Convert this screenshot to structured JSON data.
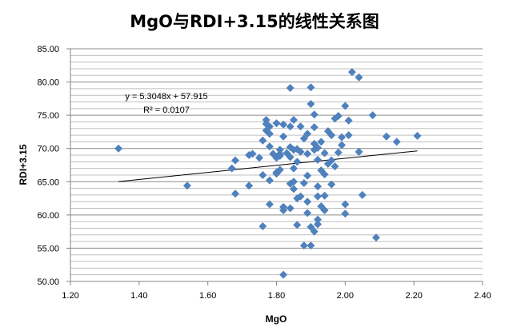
{
  "chart_data": {
    "type": "scatter",
    "title": "MgO与RDI+3.15的线性关系图",
    "xlabel": "MgO",
    "ylabel": "RDI+3.15",
    "xlim": [
      1.2,
      2.4
    ],
    "ylim": [
      50.0,
      85.0
    ],
    "x_ticks": [
      1.2,
      1.4,
      1.6,
      1.8,
      2.0,
      2.2,
      2.4
    ],
    "y_ticks": [
      50.0,
      55.0,
      60.0,
      65.0,
      70.0,
      75.0,
      80.0,
      85.0
    ],
    "x_tick_labels": [
      "1.20",
      "1.40",
      "1.60",
      "1.80",
      "2.00",
      "2.20",
      "2.40"
    ],
    "y_tick_labels": [
      "50.00",
      "55.00",
      "60.00",
      "65.00",
      "70.00",
      "75.00",
      "80.00",
      "85.00"
    ],
    "grid": {
      "horizontal": true,
      "minor_horizontal_step": 1,
      "vertical": false
    },
    "marker_color": "#4f81bd",
    "trendline": {
      "slope": 5.3048,
      "intercept": 57.915,
      "x_range": [
        1.34,
        2.21
      ],
      "color": "#000000",
      "equation_label": "y = 5.3048x  + 57.915",
      "r2_label": "R² = 0.0107"
    },
    "points": [
      [
        1.34,
        70.0
      ],
      [
        1.54,
        64.4
      ],
      [
        1.67,
        67.0
      ],
      [
        1.68,
        68.2
      ],
      [
        1.68,
        63.2
      ],
      [
        1.72,
        69.0
      ],
      [
        1.72,
        64.4
      ],
      [
        1.73,
        69.2
      ],
      [
        1.75,
        68.6
      ],
      [
        1.76,
        71.2
      ],
      [
        1.76,
        66.0
      ],
      [
        1.76,
        58.3
      ],
      [
        1.77,
        74.3
      ],
      [
        1.77,
        73.7
      ],
      [
        1.77,
        72.7
      ],
      [
        1.78,
        73.3
      ],
      [
        1.78,
        72.2
      ],
      [
        1.78,
        70.3
      ],
      [
        1.78,
        65.2
      ],
      [
        1.78,
        61.6
      ],
      [
        1.79,
        69.2
      ],
      [
        1.8,
        73.8
      ],
      [
        1.8,
        68.6
      ],
      [
        1.8,
        66.4
      ],
      [
        1.8,
        66.2
      ],
      [
        1.81,
        69.8
      ],
      [
        1.81,
        69.2
      ],
      [
        1.81,
        68.9
      ],
      [
        1.81,
        66.8
      ],
      [
        1.82,
        71.8
      ],
      [
        1.82,
        73.6
      ],
      [
        1.82,
        61.2
      ],
      [
        1.82,
        60.7
      ],
      [
        1.82,
        51.0
      ],
      [
        1.83,
        69.3
      ],
      [
        1.84,
        79.1
      ],
      [
        1.84,
        73.3
      ],
      [
        1.84,
        70.2
      ],
      [
        1.84,
        68.7
      ],
      [
        1.84,
        64.7
      ],
      [
        1.84,
        61.0
      ],
      [
        1.85,
        74.3
      ],
      [
        1.85,
        69.8
      ],
      [
        1.85,
        67.0
      ],
      [
        1.85,
        65.0
      ],
      [
        1.85,
        63.9
      ],
      [
        1.86,
        69.9
      ],
      [
        1.86,
        68.0
      ],
      [
        1.86,
        62.5
      ],
      [
        1.86,
        58.5
      ],
      [
        1.87,
        73.3
      ],
      [
        1.87,
        69.5
      ],
      [
        1.87,
        62.8
      ],
      [
        1.88,
        71.5
      ],
      [
        1.88,
        64.8
      ],
      [
        1.88,
        55.4
      ],
      [
        1.89,
        72.2
      ],
      [
        1.89,
        69.2
      ],
      [
        1.89,
        65.9
      ],
      [
        1.89,
        62.0
      ],
      [
        1.89,
        60.3
      ],
      [
        1.9,
        79.2
      ],
      [
        1.9,
        76.7
      ],
      [
        1.9,
        58.2
      ],
      [
        1.9,
        55.4
      ],
      [
        1.91,
        75.1
      ],
      [
        1.91,
        73.2
      ],
      [
        1.91,
        70.7
      ],
      [
        1.91,
        69.8
      ],
      [
        1.91,
        57.5
      ],
      [
        1.92,
        70.1
      ],
      [
        1.92,
        68.3
      ],
      [
        1.92,
        64.3
      ],
      [
        1.92,
        62.8
      ],
      [
        1.92,
        59.3
      ],
      [
        1.92,
        58.6
      ],
      [
        1.93,
        71.0
      ],
      [
        1.93,
        66.7
      ],
      [
        1.93,
        61.3
      ],
      [
        1.94,
        69.3
      ],
      [
        1.94,
        66.1
      ],
      [
        1.94,
        62.9
      ],
      [
        1.94,
        60.7
      ],
      [
        1.95,
        72.6
      ],
      [
        1.95,
        67.7
      ],
      [
        1.96,
        72.0
      ],
      [
        1.96,
        68.2
      ],
      [
        1.96,
        64.6
      ],
      [
        1.97,
        74.5
      ],
      [
        1.97,
        67.3
      ],
      [
        1.98,
        74.9
      ],
      [
        1.98,
        69.4
      ],
      [
        1.99,
        71.7
      ],
      [
        1.99,
        70.5
      ],
      [
        2.0,
        76.4
      ],
      [
        2.0,
        61.6
      ],
      [
        2.0,
        60.2
      ],
      [
        2.01,
        74.2
      ],
      [
        2.01,
        72.0
      ],
      [
        2.02,
        81.5
      ],
      [
        2.04,
        80.7
      ],
      [
        2.04,
        69.5
      ],
      [
        2.05,
        63.0
      ],
      [
        2.08,
        75.0
      ],
      [
        2.09,
        56.6
      ],
      [
        2.12,
        71.8
      ],
      [
        2.15,
        71.0
      ],
      [
        2.21,
        71.9
      ]
    ]
  }
}
